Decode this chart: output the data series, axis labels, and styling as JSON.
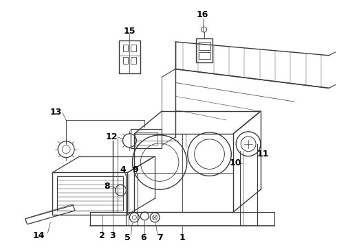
{
  "background_color": "#ffffff",
  "line_color": "#3a3a3a",
  "label_color": "#000000",
  "fig_width": 4.9,
  "fig_height": 3.6,
  "dpi": 100,
  "font_size_labels": 9
}
